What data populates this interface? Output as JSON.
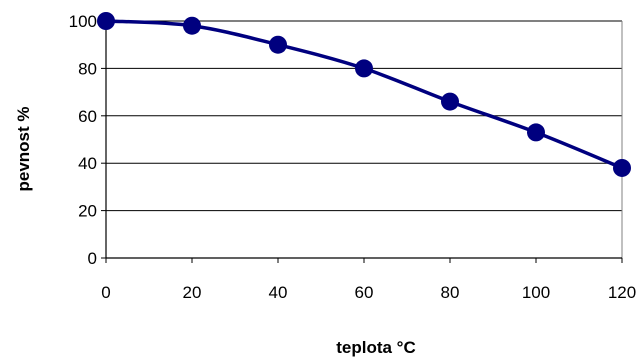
{
  "chart_data": {
    "type": "line",
    "xlabel": "teplota °C",
    "ylabel": "pevnost  %",
    "xlim": [
      0,
      120
    ],
    "ylim": [
      0,
      100
    ],
    "x_ticks": [
      0,
      20,
      40,
      60,
      80,
      100,
      120
    ],
    "y_ticks": [
      0,
      20,
      40,
      60,
      80,
      100
    ],
    "grid": "horizontal",
    "legend": "none",
    "series": [
      {
        "x": [
          0,
          20,
          40,
          60,
          80,
          100,
          120
        ],
        "values": [
          100,
          98,
          90,
          80,
          66,
          53,
          38
        ],
        "color": "#00007f",
        "marker": "circle"
      }
    ],
    "colors": {
      "line": "#00007f",
      "grid": "#000000",
      "axis": "#000000"
    }
  }
}
